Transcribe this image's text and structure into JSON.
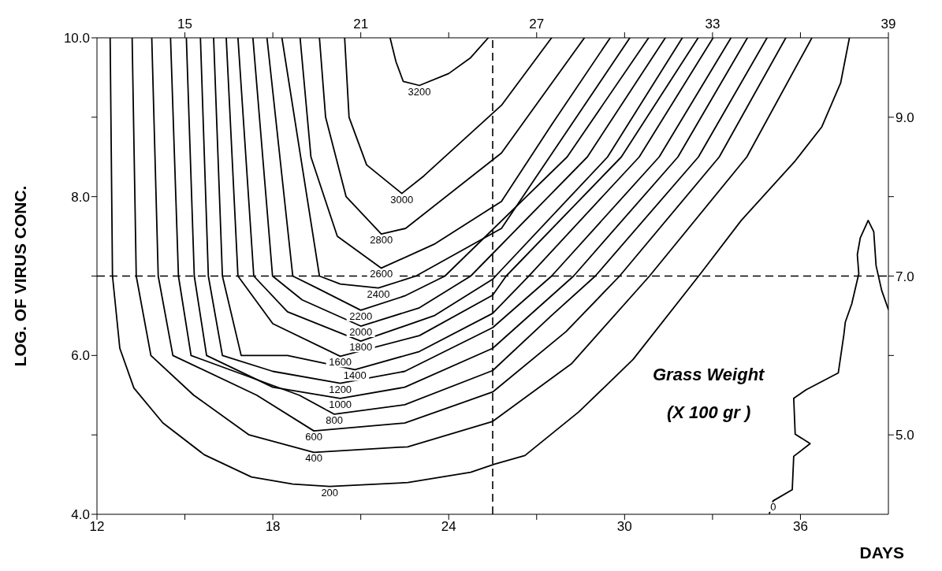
{
  "chart_data": {
    "type": "line",
    "xlabel": "DAYS",
    "ylabel": "LOG. OF VIRUS CONC.",
    "annotations": [
      "Grass Weight",
      "(X 100 gr )"
    ],
    "xlim": [
      12,
      39
    ],
    "xticks": [
      12,
      {
        "value": 15,
        "label": null
      },
      18,
      {
        "value": 21,
        "label": null
      },
      24,
      {
        "value": 27,
        "label": null
      },
      30,
      {
        "value": 33,
        "label": null
      },
      36
    ],
    "x2lim": [
      12,
      39
    ],
    "x2ticks": [
      15,
      {
        "value": 18,
        "label": null
      },
      21,
      {
        "value": 24,
        "label": null
      },
      27,
      {
        "value": 30,
        "label": null
      },
      33,
      {
        "value": 36,
        "label": null
      },
      39
    ],
    "ylim": [
      4,
      10
    ],
    "yticks": [
      {
        "value": 4,
        "label": "4.0"
      },
      {
        "value": 5,
        "label": null
      },
      {
        "value": 6,
        "label": "6.0"
      },
      {
        "value": 7,
        "label": null
      },
      {
        "value": 8,
        "label": "8.0"
      },
      {
        "value": 9,
        "label": null
      },
      {
        "value": 10,
        "label": "10.0"
      }
    ],
    "y2lim": [
      4,
      10
    ],
    "y2ticks": [
      {
        "value": 5,
        "label": "5.0"
      },
      {
        "value": 6,
        "label": null
      },
      {
        "value": 7,
        "label": "7.0"
      },
      {
        "value": 8,
        "label": null
      },
      {
        "value": 9,
        "label": "9.0"
      }
    ],
    "grid": false,
    "legend": false,
    "marker": "none",
    "line_style": "solid",
    "ref_lines": [
      {
        "axis": "x",
        "value": 25.5,
        "color": "#000000",
        "line_style": "dashed"
      },
      {
        "axis": "y",
        "value": 7,
        "color": "#000000",
        "line_style": "dashed"
      }
    ],
    "series": [
      {
        "name": "200",
        "color": "#000000",
        "x": [
          12.45,
          12.53,
          12.78,
          13.26,
          14.25,
          15.66,
          17.27,
          18.68,
          19.94,
          22.61,
          24.75,
          25.56,
          26.6,
          28.44,
          30.29,
          32.59,
          33.98,
          35.82,
          36.73,
          37.37,
          37.67
        ],
        "values": [
          10,
          7,
          6.09,
          5.59,
          5.15,
          4.75,
          4.47,
          4.38,
          4.35,
          4.4,
          4.53,
          4.63,
          4.74,
          5.29,
          5.95,
          7.03,
          7.7,
          8.45,
          8.88,
          9.43,
          10
        ]
      },
      {
        "name": "400",
        "color": "#000000",
        "x": [
          13.2,
          13.34,
          13.84,
          15.3,
          17.19,
          19.4,
          22.6,
          25.5,
          28.2,
          30.85,
          34.17,
          36.39
        ],
        "values": [
          10,
          7,
          6,
          5.5,
          5,
          4.78,
          4.85,
          5.17,
          5.9,
          7,
          8.5,
          10
        ]
      },
      {
        "name": "600",
        "color": "#000000",
        "x": [
          13.87,
          14.09,
          14.59,
          17.45,
          19.4,
          22.5,
          25.5,
          28,
          29.83,
          33.23,
          35.5
        ],
        "values": [
          10,
          7,
          6,
          5.5,
          5.05,
          5.15,
          5.54,
          6.3,
          7,
          8.5,
          10
        ]
      },
      {
        "name": "800",
        "color": "#000000",
        "x": [
          14.51,
          14.78,
          15.21,
          18.9,
          20.1,
          22.5,
          25.5,
          27.5,
          29,
          32.52,
          34.86
        ],
        "values": [
          10,
          7,
          6,
          5.5,
          5.26,
          5.38,
          5.81,
          6.5,
          7,
          8.5,
          10
        ]
      },
      {
        "name": "1000",
        "color": "#000000",
        "x": [
          15.05,
          15.32,
          15.74,
          18,
          20.3,
          22.5,
          25.5,
          28.26,
          31.82,
          34.19
        ],
        "values": [
          10,
          7,
          6,
          5.6,
          5.46,
          5.6,
          6.09,
          7,
          8.5,
          10
        ]
      },
      {
        "name": "1200",
        "color": "#000000",
        "x": [
          15.53,
          15.8,
          16.28,
          18,
          20.3,
          22.5,
          25.5,
          27.51,
          31.18,
          33.63
        ],
        "values": [
          10,
          7,
          6,
          5.8,
          5.65,
          5.8,
          6.35,
          7,
          8.5,
          10
        ]
      },
      {
        "name": "1400",
        "color": "#000000",
        "x": [
          15.98,
          16.28,
          16.92,
          18.5,
          20.8,
          23,
          25.5,
          26.73,
          30.5,
          33.02
        ],
        "values": [
          10,
          7,
          6,
          6,
          5.82,
          6.05,
          6.53,
          7,
          8.5,
          10
        ]
      },
      {
        "name": "1600",
        "color": "#000000",
        "x": [
          16.41,
          16.81,
          18,
          20.3,
          23,
          25.5,
          25.96,
          29.89,
          32.51
        ],
        "values": [
          10,
          7,
          6.4,
          5.99,
          6.25,
          6.76,
          7,
          8.5,
          10
        ]
      },
      {
        "name": "1800",
        "color": "#000000",
        "x": [
          16.81,
          17.35,
          18.5,
          21,
          23.5,
          25.5,
          25.6,
          29.42,
          31.97
        ],
        "values": [
          10,
          7,
          6.55,
          6.18,
          6.5,
          6.96,
          7,
          8.5,
          10
        ]
      },
      {
        "name": "2000",
        "color": "#000000",
        "x": [
          17.32,
          17.99,
          19,
          21,
          23,
          24.75,
          28.73,
          31.39
        ],
        "values": [
          10,
          7,
          6.7,
          6.37,
          6.6,
          7,
          8.5,
          10
        ]
      },
      {
        "name": "2200",
        "color": "#000000",
        "x": [
          17.8,
          18.68,
          19.5,
          21,
          22.5,
          23.87,
          28.04,
          30.82
        ],
        "values": [
          10,
          7,
          6.85,
          6.57,
          6.75,
          7,
          8.5,
          10
        ]
      },
      {
        "name": "2400",
        "color": "#000000",
        "x": [
          18.31,
          19.59,
          20.3,
          21.6,
          22.88,
          25.8,
          30.18
        ],
        "values": [
          10,
          7,
          6.9,
          6.85,
          7,
          7.6,
          10
        ]
      },
      {
        "name": "2600",
        "color": "#000000",
        "x": [
          18.93,
          19.3,
          20.2,
          21.7,
          23.5,
          25.8,
          27.5,
          29.51
        ],
        "values": [
          10,
          8.5,
          7.5,
          7.1,
          7.4,
          7.94,
          8.9,
          10
        ]
      },
      {
        "name": "2800",
        "color": "#000000",
        "x": [
          19.59,
          19.8,
          20.5,
          21.7,
          22.53,
          25.8,
          28.63
        ],
        "values": [
          10,
          9,
          8,
          7.53,
          7.6,
          8.55,
          10
        ]
      },
      {
        "name": "3000",
        "color": "#000000",
        "x": [
          20.45,
          20.6,
          21.2,
          22.4,
          23.15,
          25.8,
          27.51
        ],
        "values": [
          10,
          9,
          8.4,
          8.04,
          8.26,
          9.15,
          10
        ]
      },
      {
        "name": "3200",
        "color": "#000000",
        "x": [
          22,
          22.2,
          22.45,
          23,
          24,
          24.75,
          25.35
        ],
        "values": [
          10,
          9.7,
          9.45,
          9.4,
          9.55,
          9.75,
          10
        ]
      },
      {
        "name": "0",
        "color": "#000000",
        "x": [
          34.94,
          35.07,
          35.72,
          35.77,
          36.33,
          35.82,
          35.77,
          36.2,
          37.29,
          37.48,
          37.53,
          37.75,
          37.99,
          37.94,
          38.04,
          38.31,
          38.5,
          38.58,
          38.77,
          39
        ],
        "values": [
          4.01,
          4.17,
          4.31,
          4.73,
          4.89,
          5.01,
          5.46,
          5.57,
          5.78,
          6.26,
          6.42,
          6.65,
          7.03,
          7.27,
          7.48,
          7.7,
          7.56,
          7.13,
          6.82,
          6.58
        ]
      }
    ]
  }
}
